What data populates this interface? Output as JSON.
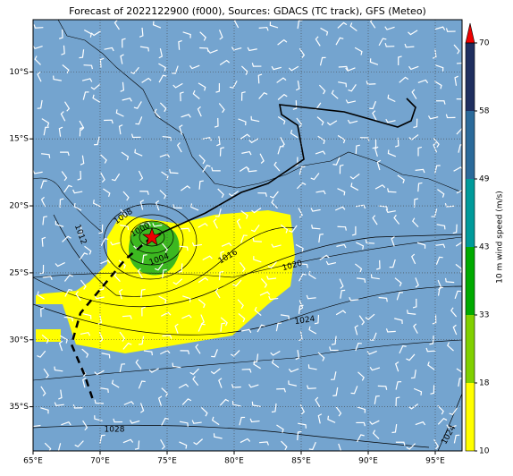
{
  "chart_data": {
    "type": "map",
    "title": "Forecast of 2022122900 (f000), Sources: GDACS (TC track), GFS (Meteo)",
    "xlim": [
      65,
      97
    ],
    "ylim": [
      -38.3,
      -6.1
    ],
    "xticks": [
      {
        "value": 65,
        "label": "65°E"
      },
      {
        "value": 70,
        "label": "70°E"
      },
      {
        "value": 75,
        "label": "75°E"
      },
      {
        "value": 80,
        "label": "80°E"
      },
      {
        "value": 85,
        "label": "85°E"
      },
      {
        "value": 90,
        "label": "90°E"
      },
      {
        "value": 95,
        "label": "95°E"
      }
    ],
    "yticks": [
      {
        "value": -10,
        "label": "10°S"
      },
      {
        "value": -15,
        "label": "15°S"
      },
      {
        "value": -20,
        "label": "20°S"
      },
      {
        "value": -25,
        "label": "25°S"
      },
      {
        "value": -30,
        "label": "30°S"
      },
      {
        "value": -35,
        "label": "35°S"
      }
    ],
    "grid": true,
    "colorbar": {
      "label": "10 m wind speed (m/s)",
      "ticks": [
        10,
        18,
        33,
        43,
        49,
        58,
        70
      ],
      "colors": [
        "#ffff00",
        "#80d000",
        "#00aa00",
        "#009a9a",
        "#2b6a9a",
        "#1f2f5f"
      ],
      "extend_color": "#ee0000"
    },
    "isobar_labels": [
      1008,
      1000,
      1004,
      1012,
      1016,
      1020,
      1024,
      1028,
      1024
    ]
  }
}
